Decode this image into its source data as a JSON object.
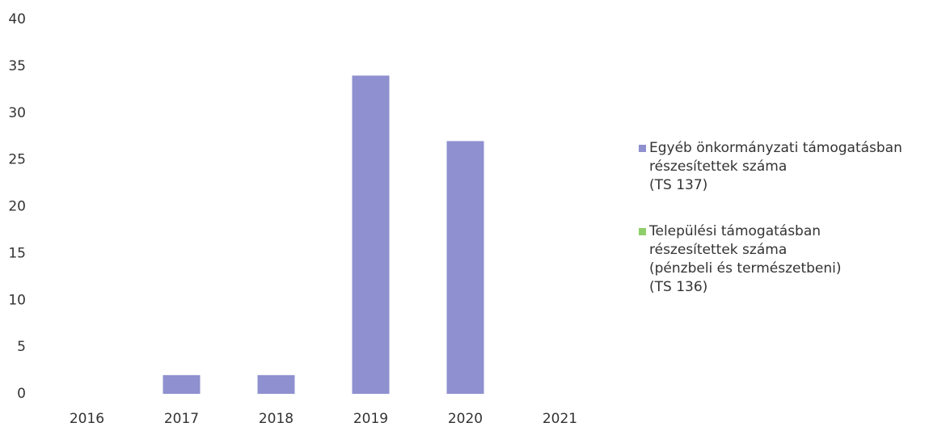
{
  "chart_data": {
    "type": "bar",
    "categories": [
      "2016",
      "2017",
      "2018",
      "2019",
      "2020",
      "2021"
    ],
    "series": [
      {
        "name": "Egyéb önkormányzati támogatásban\nrészesítettek száma\n(TS 137)",
        "color": "#8e90cf",
        "values": [
          0,
          2,
          2,
          34,
          27,
          0
        ]
      },
      {
        "name": "Települési támogatásban\nrészesítettek száma\n(pénzbeli és természetbeni)\n(TS 136)",
        "color": "#8fcf6a",
        "values": [
          0,
          0,
          0,
          0,
          0,
          0
        ]
      }
    ],
    "ylim": [
      0,
      40
    ],
    "yticks": [
      0,
      5,
      10,
      15,
      20,
      25,
      30,
      35,
      40
    ],
    "grid": false,
    "legend": "right"
  }
}
